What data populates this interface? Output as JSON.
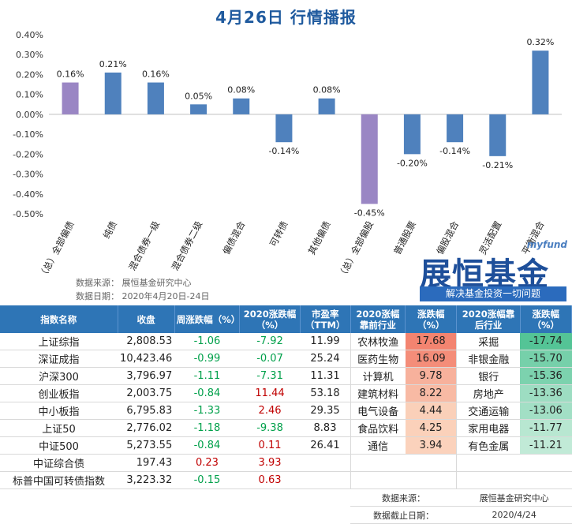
{
  "title": "4月26日  行情播报",
  "chart_data": {
    "type": "bar",
    "categories": [
      "（总）全部偏债",
      "纯债",
      "混合债券一级",
      "混合债券二级",
      "偏债混合",
      "可转债",
      "其他偏债",
      "（总）全部偏股",
      "普通股票",
      "偏股混合",
      "灵活配置",
      "平衡混合"
    ],
    "values": [
      0.16,
      0.21,
      0.16,
      0.05,
      0.08,
      -0.14,
      0.08,
      -0.45,
      -0.2,
      -0.14,
      -0.21,
      0.32
    ],
    "value_labels": [
      "0.16%",
      "0.21%",
      "0.16%",
      "0.05%",
      "0.08%",
      "-0.14%",
      "0.08%",
      "-0.45%",
      "-0.20%",
      "-0.14%",
      "-0.21%",
      "0.32%"
    ],
    "highlight": [
      true,
      false,
      false,
      false,
      false,
      false,
      false,
      true,
      false,
      false,
      false,
      false
    ],
    "ylim": [
      -0.5,
      0.4
    ],
    "yticks": [
      "0.40%",
      "0.30%",
      "0.20%",
      "0.10%",
      "0.00%",
      "-0.10%",
      "-0.20%",
      "-0.30%",
      "-0.40%",
      "-0.50%"
    ],
    "colors": {
      "bar": "#4f81bd",
      "highlight": "#9a86c4"
    }
  },
  "source": {
    "line1": "数据来源：  展恒基金研究中心",
    "line2": "数据日期：  2020年4月20日-24日"
  },
  "logo": {
    "en": "myfund",
    "cn": "展恒基金",
    "slogan": "解决基金投资一切问题"
  },
  "table": {
    "headers": [
      "指数名称",
      "收盘",
      "周涨跌幅（%）",
      "2020涨跌幅（%）",
      "市盈率（TTM）",
      "2020涨幅靠前行业",
      "涨跌幅（%）",
      "2020涨幅靠后行业",
      "涨跌幅（%）"
    ],
    "rows": [
      {
        "name": "上证综指",
        "close": "2,808.53",
        "week": "-1.06",
        "ytd": "-7.92",
        "pe": "11.99",
        "top_ind": "农林牧渔",
        "top_val": "17.68",
        "bot_ind": "采掘",
        "bot_val": "-17.74"
      },
      {
        "name": "深证成指",
        "close": "10,423.46",
        "week": "-0.99",
        "ytd": "-0.07",
        "pe": "25.24",
        "top_ind": "医药生物",
        "top_val": "16.09",
        "bot_ind": "非银金融",
        "bot_val": "-15.70"
      },
      {
        "name": "沪深300",
        "close": "3,796.97",
        "week": "-1.11",
        "ytd": "-7.31",
        "pe": "11.31",
        "top_ind": "计算机",
        "top_val": "9.78",
        "bot_ind": "银行",
        "bot_val": "-15.36"
      },
      {
        "name": "创业板指",
        "close": "2,003.75",
        "week": "-0.84",
        "ytd": "11.44",
        "pe": "53.18",
        "top_ind": "建筑材料",
        "top_val": "8.22",
        "bot_ind": "房地产",
        "bot_val": "-13.36"
      },
      {
        "name": "中小板指",
        "close": "6,795.83",
        "week": "-1.33",
        "ytd": "2.46",
        "pe": "29.35",
        "top_ind": "电气设备",
        "top_val": "4.44",
        "bot_ind": "交通运输",
        "bot_val": "-13.06"
      },
      {
        "name": "上证50",
        "close": "2,776.02",
        "week": "-1.18",
        "ytd": "-9.38",
        "pe": "8.83",
        "top_ind": "食品饮料",
        "top_val": "4.25",
        "bot_ind": "家用电器",
        "bot_val": "-11.77"
      },
      {
        "name": "中证500",
        "close": "5,273.55",
        "week": "-0.84",
        "ytd": "0.11",
        "pe": "26.41",
        "top_ind": "通信",
        "top_val": "3.94",
        "bot_ind": "有色金属",
        "bot_val": "-11.21"
      },
      {
        "name": "中证综合债",
        "close": "197.43",
        "week": "0.23",
        "ytd": "3.93",
        "pe": "",
        "top_ind": "",
        "top_val": "",
        "bot_ind": "",
        "bot_val": ""
      },
      {
        "name": "标普中国可转债指数",
        "close": "3,223.32",
        "week": "-0.15",
        "ytd": "0.63",
        "pe": "",
        "top_ind": "",
        "top_val": "",
        "bot_ind": "",
        "bot_val": ""
      }
    ],
    "footer": {
      "source_label": "数据来源：",
      "source_value": "展恒基金研究中心",
      "date_label": "数据截止日期：",
      "date_value": "2020/4/24"
    }
  }
}
